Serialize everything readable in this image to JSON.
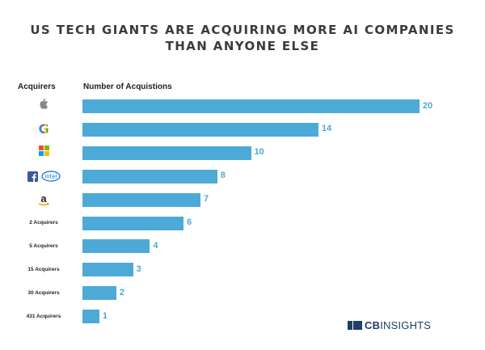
{
  "title_lines": [
    "US TECH GIANTS ARE ACQUIRING MORE AI COMPANIES",
    "THAN ANYONE ELSE"
  ],
  "headers": {
    "acquirers": "Acquirers",
    "number": "Number of Acquistions"
  },
  "brand": {
    "bold": "CB",
    "rest": "INSIGHTS",
    "color": "#1e3f66"
  },
  "chart_data": {
    "type": "bar",
    "orientation": "horizontal",
    "title": "US TECH GIANTS ARE ACQUIRING MORE AI COMPANIES THAN ANYONE ELSE",
    "ylabel": "Acquirers",
    "xlabel": "Number of Acquistions",
    "bar_color": "#4daad6",
    "xlim": [
      0,
      20
    ],
    "categories": [
      {
        "label": "",
        "logo": "apple-icon"
      },
      {
        "label": "",
        "logo": "google-icon"
      },
      {
        "label": "",
        "logo": "microsoft-icon"
      },
      {
        "label": "",
        "logo": "facebook-intel-icon"
      },
      {
        "label": "",
        "logo": "amazon-icon"
      },
      {
        "label": "2 Acquirers",
        "logo": ""
      },
      {
        "label": "5 Acquirers",
        "logo": ""
      },
      {
        "label": "15 Acquirers",
        "logo": ""
      },
      {
        "label": "30 Acquirers",
        "logo": ""
      },
      {
        "label": "431 Acquirers",
        "logo": ""
      }
    ],
    "values": [
      20,
      14,
      10,
      8,
      7,
      6,
      4,
      3,
      2,
      1
    ],
    "data_labels": [
      "20",
      "14",
      "10",
      "8",
      "7",
      "6",
      "4",
      "3",
      "2",
      "1"
    ]
  }
}
